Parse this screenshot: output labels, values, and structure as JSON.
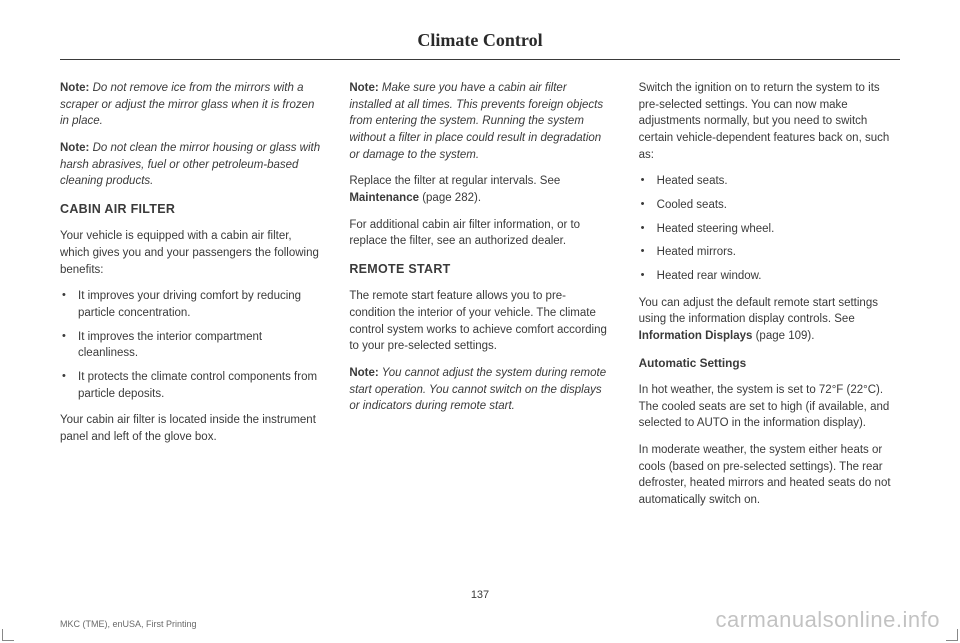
{
  "header": {
    "title": "Climate Control"
  },
  "col1": {
    "note1_label": "Note:",
    "note1_text": " Do not remove ice from the mirrors with a scraper or adjust the mirror glass when it is frozen in place.",
    "note2_label": "Note:",
    "note2_text": " Do not clean the mirror housing or glass with harsh abrasives, fuel or other petroleum-based cleaning products.",
    "section1_head": "CABIN AIR FILTER",
    "p1": "Your vehicle is equipped with a cabin air filter, which gives you and your passengers the following benefits:",
    "bullets": [
      "It improves your driving comfort by reducing particle concentration.",
      "It improves the interior compartment cleanliness.",
      "It protects the climate control components from particle deposits."
    ],
    "p2": "Your cabin air filter is located inside the instrument panel and left of the glove box."
  },
  "col2": {
    "note1_label": "Note:",
    "note1_text": " Make sure you have a cabin air filter installed at all times. This prevents foreign objects from entering the system. Running the system without a filter in place could result in degradation or damage to the system.",
    "p1a": "Replace the filter at regular intervals.  See ",
    "p1b": "Maintenance",
    "p1c": " (page 282).",
    "p2": "For additional cabin air filter information, or to replace the filter, see an authorized dealer.",
    "section_head": "REMOTE START",
    "p3": "The remote start feature allows you to pre-condition the interior of your vehicle. The climate control system works to achieve comfort according to your pre-selected settings.",
    "note2_label": "Note:",
    "note2_text": " You cannot adjust the system during remote start operation. You cannot switch on the displays or indicators during remote start."
  },
  "col3": {
    "p1": "Switch the ignition on to return the system to its pre-selected settings. You can now make adjustments normally, but you need to switch certain vehicle-dependent features back on, such as:",
    "bullets": [
      "Heated seats.",
      "Cooled seats.",
      "Heated steering wheel.",
      "Heated mirrors.",
      "Heated rear window."
    ],
    "p2a": "You can adjust the default remote start settings using the information display controls.  See ",
    "p2b": "Information Displays",
    "p2c": " (page 109).",
    "subhead": "Automatic Settings",
    "p3": "In hot weather, the system is set to 72°F (22°C). The cooled seats are set to high (if available, and selected to AUTO in the information display).",
    "p4": "In moderate weather, the system either heats or cools (based on pre-selected settings). The rear defroster, heated mirrors and heated seats do not automatically switch on."
  },
  "pagenum": "137",
  "footer": "MKC (TME), enUSA, First Printing",
  "watermark": "carmanualsonline.info"
}
